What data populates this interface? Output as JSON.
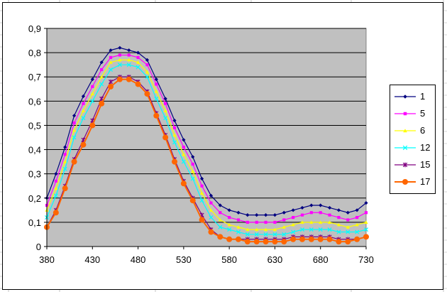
{
  "chart_data": {
    "type": "line",
    "title": "",
    "xlabel": "",
    "ylabel": "",
    "x": [
      380,
      390,
      400,
      410,
      420,
      430,
      440,
      450,
      460,
      470,
      480,
      490,
      500,
      510,
      520,
      530,
      540,
      550,
      560,
      570,
      580,
      590,
      600,
      610,
      620,
      630,
      640,
      650,
      660,
      670,
      680,
      690,
      700,
      710,
      720,
      730
    ],
    "xlim": [
      380,
      730
    ],
    "ylim": [
      0,
      0.9
    ],
    "x_ticks": [
      380,
      430,
      480,
      530,
      580,
      630,
      680,
      730
    ],
    "x_tick_labels": [
      "380",
      "430",
      "480",
      "530",
      "580",
      "630",
      "680",
      "730"
    ],
    "y_ticks": [
      0,
      0.1,
      0.2,
      0.3,
      0.4,
      0.5,
      0.6,
      0.7,
      0.8,
      0.9
    ],
    "y_tick_labels": [
      "0",
      "0,1",
      "0,2",
      "0,3",
      "0,4",
      "0,5",
      "0,6",
      "0,7",
      "0,8",
      "0,9"
    ],
    "grid": "horizontal",
    "plot_background": "#c0c0c0",
    "legend_position": "right",
    "series": [
      {
        "name": "1",
        "color": "#000080",
        "marker": "diamond",
        "values": [
          0.2,
          0.3,
          0.41,
          0.54,
          0.62,
          0.69,
          0.76,
          0.81,
          0.82,
          0.81,
          0.8,
          0.77,
          0.69,
          0.61,
          0.52,
          0.44,
          0.37,
          0.28,
          0.21,
          0.17,
          0.15,
          0.14,
          0.13,
          0.13,
          0.13,
          0.13,
          0.14,
          0.15,
          0.16,
          0.17,
          0.17,
          0.16,
          0.15,
          0.14,
          0.15,
          0.18
        ]
      },
      {
        "name": "5",
        "color": "#ff00ff",
        "marker": "square",
        "values": [
          0.17,
          0.27,
          0.38,
          0.51,
          0.59,
          0.66,
          0.73,
          0.78,
          0.79,
          0.79,
          0.78,
          0.75,
          0.67,
          0.59,
          0.49,
          0.41,
          0.34,
          0.25,
          0.18,
          0.14,
          0.12,
          0.11,
          0.1,
          0.1,
          0.1,
          0.1,
          0.11,
          0.12,
          0.13,
          0.14,
          0.14,
          0.13,
          0.12,
          0.11,
          0.12,
          0.14
        ]
      },
      {
        "name": "6",
        "color": "#ffff00",
        "marker": "triangle",
        "values": [
          0.15,
          0.24,
          0.35,
          0.48,
          0.56,
          0.63,
          0.7,
          0.76,
          0.77,
          0.77,
          0.76,
          0.72,
          0.64,
          0.56,
          0.46,
          0.38,
          0.31,
          0.22,
          0.15,
          0.11,
          0.09,
          0.08,
          0.07,
          0.07,
          0.07,
          0.07,
          0.08,
          0.09,
          0.1,
          0.1,
          0.1,
          0.1,
          0.09,
          0.08,
          0.09,
          0.1
        ]
      },
      {
        "name": "12",
        "color": "#00ffff",
        "marker": "x",
        "values": [
          0.12,
          0.21,
          0.32,
          0.45,
          0.53,
          0.6,
          0.67,
          0.73,
          0.75,
          0.75,
          0.74,
          0.7,
          0.61,
          0.53,
          0.43,
          0.35,
          0.28,
          0.19,
          0.12,
          0.08,
          0.07,
          0.06,
          0.05,
          0.05,
          0.05,
          0.05,
          0.05,
          0.06,
          0.07,
          0.07,
          0.07,
          0.07,
          0.06,
          0.06,
          0.06,
          0.07
        ]
      },
      {
        "name": "15",
        "color": "#800080",
        "marker": "star",
        "values": [
          0.08,
          0.15,
          0.25,
          0.36,
          0.44,
          0.52,
          0.61,
          0.68,
          0.7,
          0.7,
          0.68,
          0.64,
          0.55,
          0.46,
          0.36,
          0.27,
          0.2,
          0.13,
          0.07,
          0.04,
          0.03,
          0.03,
          0.03,
          0.03,
          0.03,
          0.03,
          0.03,
          0.04,
          0.04,
          0.04,
          0.04,
          0.04,
          0.03,
          0.03,
          0.03,
          0.04
        ]
      },
      {
        "name": "17",
        "color": "#ff6600",
        "marker": "circle",
        "values": [
          0.08,
          0.14,
          0.24,
          0.35,
          0.42,
          0.5,
          0.59,
          0.66,
          0.69,
          0.69,
          0.67,
          0.63,
          0.54,
          0.45,
          0.35,
          0.26,
          0.19,
          0.11,
          0.06,
          0.04,
          0.03,
          0.03,
          0.02,
          0.02,
          0.02,
          0.02,
          0.02,
          0.03,
          0.03,
          0.03,
          0.03,
          0.03,
          0.02,
          0.02,
          0.03,
          0.04
        ]
      }
    ]
  }
}
